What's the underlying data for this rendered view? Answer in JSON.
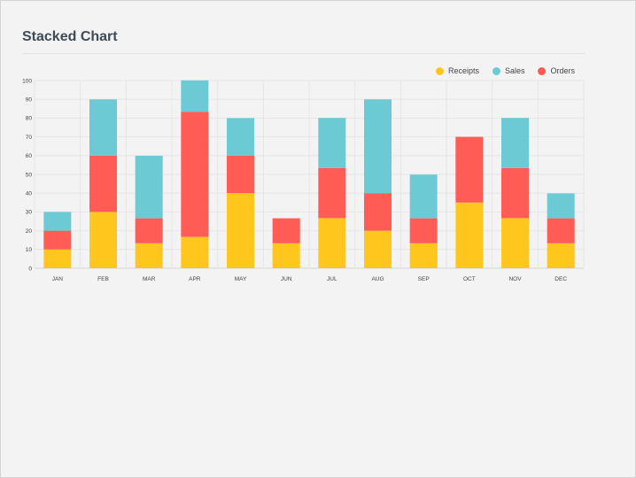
{
  "page": {
    "title": "Stacked Chart"
  },
  "chart_data": {
    "type": "bar",
    "stacked": true,
    "title": "Stacked Chart",
    "xlabel": "",
    "ylabel": "",
    "ylim": [
      0,
      100
    ],
    "yticks": [
      0,
      10,
      20,
      30,
      40,
      50,
      60,
      70,
      80,
      90,
      100
    ],
    "grid": true,
    "legend_position": "top-right",
    "categories": [
      "JAN",
      "FEB",
      "MAR",
      "APR",
      "MAY",
      "JUN",
      "JUL",
      "AUG",
      "SEP",
      "OCT",
      "NOV",
      "DEC"
    ],
    "series": [
      {
        "name": "Receipts",
        "color": "#ffc61e",
        "values": [
          10,
          30,
          13.3,
          16.7,
          40,
          13.3,
          26.7,
          20,
          13.3,
          35,
          26.7,
          13.3
        ]
      },
      {
        "name": "Orders",
        "color": "#ff5c56",
        "values": [
          10,
          30,
          13.3,
          66.7,
          20,
          13.3,
          26.7,
          20,
          13.3,
          35,
          26.7,
          13.3
        ]
      },
      {
        "name": "Sales",
        "color": "#6bcad4",
        "values": [
          10,
          30,
          33.3,
          16.7,
          20,
          0,
          26.7,
          50,
          23.3,
          0,
          26.7,
          13.3
        ]
      }
    ],
    "legend": [
      {
        "name": "Receipts",
        "color": "#ffc61e"
      },
      {
        "name": "Sales",
        "color": "#6bcad4"
      },
      {
        "name": "Orders",
        "color": "#ff5c56"
      }
    ]
  }
}
